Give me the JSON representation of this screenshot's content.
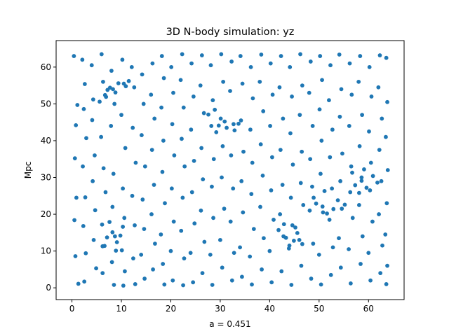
{
  "chart_data": {
    "type": "scatter",
    "title": "3D N-body simulation: yz",
    "xlabel": "a = 0.451",
    "ylabel": "Mpc",
    "xlim": [
      -3.2,
      67.2
    ],
    "ylim": [
      -3.2,
      67.2
    ],
    "x_ticks": [
      0,
      10,
      20,
      30,
      40,
      50,
      60
    ],
    "y_ticks": [
      0,
      10,
      20,
      30,
      40,
      50,
      60
    ],
    "x_tick_labels": [
      "0",
      "10",
      "20",
      "30",
      "40",
      "50",
      "60"
    ],
    "y_tick_labels": [
      "0",
      "10",
      "20",
      "30",
      "40",
      "50",
      "60"
    ],
    "grid": false,
    "marker_color": "#1f77b4",
    "series": [
      {
        "values": [
          [
            0.4,
            63.0
          ],
          [
            1.1,
            49.7
          ],
          [
            0.8,
            44.2
          ],
          [
            0.6,
            35.2
          ],
          [
            0.9,
            24.5
          ],
          [
            0.5,
            18.4
          ],
          [
            0.7,
            8.6
          ],
          [
            1.3,
            1.1
          ],
          [
            2.1,
            62.0
          ],
          [
            2.6,
            55.4
          ],
          [
            2.4,
            48.6
          ],
          [
            2.9,
            40.7
          ],
          [
            2.2,
            33.0
          ],
          [
            2.7,
            24.6
          ],
          [
            2.3,
            16.8
          ],
          [
            2.8,
            9.4
          ],
          [
            2.5,
            1.7
          ],
          [
            4.0,
            60.5
          ],
          [
            4.3,
            51.2
          ],
          [
            4.1,
            45.6
          ],
          [
            4.6,
            36.0
          ],
          [
            4.2,
            29.0
          ],
          [
            4.7,
            21.1
          ],
          [
            4.4,
            13.0
          ],
          [
            4.9,
            5.3
          ],
          [
            6.0,
            63.5
          ],
          [
            6.3,
            56.0
          ],
          [
            6.7,
            52.4
          ],
          [
            5.9,
            41.0
          ],
          [
            6.4,
            32.5
          ],
          [
            6.8,
            26.0
          ],
          [
            6.1,
            17.2
          ],
          [
            6.6,
            11.4
          ],
          [
            6.2,
            4.0
          ],
          [
            8.0,
            59.0
          ],
          [
            8.3,
            54.0
          ],
          [
            8.6,
            50.0
          ],
          [
            7.9,
            44.0
          ],
          [
            8.4,
            31.0
          ],
          [
            8.2,
            22.0
          ],
          [
            8.7,
            14.0
          ],
          [
            8.1,
            7.0
          ],
          [
            8.5,
            0.8
          ],
          [
            10.2,
            62.0
          ],
          [
            10.5,
            55.5
          ],
          [
            10.0,
            47.0
          ],
          [
            10.8,
            38.0
          ],
          [
            10.3,
            27.0
          ],
          [
            10.6,
            19.0
          ],
          [
            10.1,
            10.2
          ],
          [
            10.7,
            4.5
          ],
          [
            10.4,
            0.6
          ],
          [
            12.1,
            60.0
          ],
          [
            12.6,
            54.5
          ],
          [
            12.3,
            43.5
          ],
          [
            12.9,
            34.0
          ],
          [
            12.2,
            25.0
          ],
          [
            12.7,
            17.0
          ],
          [
            12.4,
            8.0
          ],
          [
            12.8,
            1.0
          ],
          [
            14.2,
            58.0
          ],
          [
            14.5,
            50.0
          ],
          [
            14.1,
            41.5
          ],
          [
            14.8,
            33.0
          ],
          [
            14.3,
            24.0
          ],
          [
            14.6,
            16.0
          ],
          [
            14.0,
            9.0
          ],
          [
            14.7,
            2.5
          ],
          [
            16.3,
            61.0
          ],
          [
            16.0,
            52.5
          ],
          [
            16.7,
            46.0
          ],
          [
            16.2,
            37.5
          ],
          [
            16.6,
            28.0
          ],
          [
            16.1,
            20.0
          ],
          [
            16.8,
            12.0
          ],
          [
            16.4,
            5.0
          ],
          [
            18.2,
            63.0
          ],
          [
            18.6,
            57.0
          ],
          [
            18.1,
            49.0
          ],
          [
            18.5,
            40.0
          ],
          [
            18.3,
            31.5
          ],
          [
            18.8,
            23.0
          ],
          [
            18.0,
            14.5
          ],
          [
            18.4,
            6.5
          ],
          [
            18.7,
            0.9
          ],
          [
            20.1,
            60.0
          ],
          [
            20.5,
            53.0
          ],
          [
            20.3,
            44.5
          ],
          [
            20.7,
            36.0
          ],
          [
            20.2,
            27.0
          ],
          [
            20.6,
            18.0
          ],
          [
            20.0,
            10.0
          ],
          [
            20.4,
            2.0
          ],
          [
            22.3,
            63.5
          ],
          [
            22.0,
            56.5
          ],
          [
            22.6,
            49.0
          ],
          [
            22.2,
            40.5
          ],
          [
            22.8,
            33.0
          ],
          [
            22.4,
            24.5
          ],
          [
            22.1,
            15.5
          ],
          [
            22.7,
            8.0
          ],
          [
            22.5,
            0.7
          ],
          [
            24.2,
            61.0
          ],
          [
            24.6,
            52.0
          ],
          [
            24.1,
            43.0
          ],
          [
            24.7,
            34.5
          ],
          [
            24.3,
            26.0
          ],
          [
            24.8,
            17.5
          ],
          [
            24.0,
            9.5
          ],
          [
            24.5,
            1.5
          ],
          [
            26.3,
            63.2
          ],
          [
            26.0,
            55.0
          ],
          [
            26.7,
            47.5
          ],
          [
            26.2,
            38.0
          ],
          [
            26.5,
            29.5
          ],
          [
            26.1,
            21.0
          ],
          [
            26.8,
            12.5
          ],
          [
            26.4,
            4.0
          ],
          [
            28.1,
            60.5
          ],
          [
            28.5,
            51.0
          ],
          [
            28.2,
            44.0
          ],
          [
            28.7,
            35.0
          ],
          [
            28.3,
            27.5
          ],
          [
            28.6,
            19.0
          ],
          [
            28.0,
            9.0
          ],
          [
            28.4,
            0.8
          ],
          [
            30.2,
            63.5
          ],
          [
            30.6,
            56.0
          ],
          [
            30.1,
            46.0
          ],
          [
            30.5,
            38.5
          ],
          [
            30.3,
            30.0
          ],
          [
            30.8,
            21.5
          ],
          [
            30.0,
            13.0
          ],
          [
            30.4,
            5.5
          ],
          [
            32.3,
            61.5
          ],
          [
            32.0,
            53.5
          ],
          [
            32.7,
            44.5
          ],
          [
            32.2,
            36.0
          ],
          [
            32.6,
            27.0
          ],
          [
            32.1,
            18.0
          ],
          [
            32.8,
            9.5
          ],
          [
            32.4,
            2.0
          ],
          [
            34.1,
            63.0
          ],
          [
            34.5,
            55.5
          ],
          [
            34.2,
            45.5
          ],
          [
            34.7,
            37.0
          ],
          [
            34.3,
            29.0
          ],
          [
            34.6,
            20.5
          ],
          [
            34.0,
            11.0
          ],
          [
            34.4,
            3.0
          ],
          [
            36.2,
            60.0
          ],
          [
            36.6,
            51.5
          ],
          [
            36.1,
            43.0
          ],
          [
            36.5,
            34.0
          ],
          [
            36.3,
            25.5
          ],
          [
            36.8,
            16.0
          ],
          [
            36.0,
            8.5
          ],
          [
            36.4,
            0.9
          ],
          [
            38.3,
            63.4
          ],
          [
            38.0,
            56.0
          ],
          [
            38.7,
            48.0
          ],
          [
            38.2,
            39.0
          ],
          [
            38.6,
            30.5
          ],
          [
            38.1,
            22.0
          ],
          [
            38.8,
            13.5
          ],
          [
            38.4,
            5.0
          ],
          [
            40.2,
            61.0
          ],
          [
            40.6,
            52.5
          ],
          [
            40.1,
            44.0
          ],
          [
            40.5,
            35.5
          ],
          [
            40.3,
            26.5
          ],
          [
            40.8,
            18.5
          ],
          [
            40.0,
            10.0
          ],
          [
            40.4,
            1.5
          ],
          [
            42.3,
            63.0
          ],
          [
            42.0,
            54.5
          ],
          [
            42.7,
            46.0
          ],
          [
            42.2,
            37.5
          ],
          [
            42.6,
            28.0
          ],
          [
            42.1,
            20.0
          ],
          [
            42.8,
            14.0
          ],
          [
            42.4,
            4.5
          ],
          [
            44.1,
            60.0
          ],
          [
            44.5,
            52.0
          ],
          [
            44.2,
            42.0
          ],
          [
            44.7,
            33.5
          ],
          [
            44.3,
            24.5
          ],
          [
            44.6,
            17.0
          ],
          [
            44.0,
            11.5
          ],
          [
            44.4,
            0.8
          ],
          [
            46.2,
            63.5
          ],
          [
            46.6,
            55.0
          ],
          [
            46.1,
            47.0
          ],
          [
            46.5,
            37.0
          ],
          [
            46.3,
            28.5
          ],
          [
            46.8,
            22.5
          ],
          [
            46.0,
            13.0
          ],
          [
            46.4,
            6.0
          ],
          [
            48.3,
            61.5
          ],
          [
            48.0,
            53.0
          ],
          [
            48.7,
            44.0
          ],
          [
            48.2,
            35.0
          ],
          [
            48.6,
            27.5
          ],
          [
            48.1,
            21.0
          ],
          [
            48.8,
            12.0
          ],
          [
            48.4,
            2.5
          ],
          [
            50.2,
            63.0
          ],
          [
            50.6,
            56.5
          ],
          [
            50.1,
            48.5
          ],
          [
            50.5,
            40.0
          ],
          [
            50.3,
            31.0
          ],
          [
            50.8,
            20.5
          ],
          [
            50.0,
            9.0
          ],
          [
            50.4,
            0.9
          ],
          [
            52.3,
            60.5
          ],
          [
            52.0,
            51.0
          ],
          [
            52.7,
            43.0
          ],
          [
            52.2,
            35.5
          ],
          [
            52.6,
            27.0
          ],
          [
            52.1,
            18.5
          ],
          [
            52.8,
            11.0
          ],
          [
            52.4,
            3.5
          ],
          [
            54.1,
            63.4
          ],
          [
            54.5,
            54.0
          ],
          [
            54.2,
            46.5
          ],
          [
            54.7,
            36.5
          ],
          [
            54.3,
            29.0
          ],
          [
            54.6,
            21.5
          ],
          [
            54.0,
            13.5
          ],
          [
            54.4,
            5.5
          ],
          [
            56.2,
            61.0
          ],
          [
            56.6,
            52.5
          ],
          [
            56.1,
            44.0
          ],
          [
            56.5,
            33.0
          ],
          [
            56.3,
            26.0
          ],
          [
            56.8,
            19.0
          ],
          [
            56.0,
            10.5
          ],
          [
            56.4,
            1.2
          ],
          [
            58.3,
            63.0
          ],
          [
            58.0,
            56.0
          ],
          [
            58.7,
            47.0
          ],
          [
            58.2,
            38.5
          ],
          [
            58.6,
            30.0
          ],
          [
            58.1,
            22.5
          ],
          [
            58.8,
            14.0
          ],
          [
            58.4,
            6.5
          ],
          [
            60.2,
            60.0
          ],
          [
            60.6,
            52.0
          ],
          [
            60.1,
            42.5
          ],
          [
            60.5,
            34.0
          ],
          [
            60.3,
            26.5
          ],
          [
            60.8,
            18.0
          ],
          [
            60.0,
            9.5
          ],
          [
            60.4,
            2.0
          ],
          [
            62.3,
            63.2
          ],
          [
            62.0,
            54.5
          ],
          [
            62.7,
            46.0
          ],
          [
            62.2,
            37.5
          ],
          [
            62.6,
            29.0
          ],
          [
            62.1,
            20.0
          ],
          [
            62.8,
            11.5
          ],
          [
            62.4,
            4.0
          ],
          [
            63.6,
            62.5
          ],
          [
            63.8,
            50.5
          ],
          [
            63.5,
            41.0
          ],
          [
            63.9,
            32.0
          ],
          [
            63.7,
            23.0
          ],
          [
            63.4,
            14.5
          ],
          [
            63.8,
            6.0
          ],
          [
            63.6,
            1.0
          ],
          [
            7.2,
            53.8
          ],
          [
            7.7,
            54.4
          ],
          [
            8.8,
            53.1
          ],
          [
            9.4,
            55.6
          ],
          [
            6.9,
            51.9
          ],
          [
            5.6,
            50.6
          ],
          [
            10.9,
            54.8
          ],
          [
            11.5,
            56.2
          ],
          [
            27.6,
            47.1
          ],
          [
            28.9,
            48.4
          ],
          [
            29.7,
            44.1
          ],
          [
            31.3,
            43.5
          ],
          [
            32.9,
            42.8
          ],
          [
            33.7,
            44.6
          ],
          [
            30.9,
            45.2
          ],
          [
            29.2,
            42.3
          ],
          [
            43.3,
            13.6
          ],
          [
            44.9,
            12.8
          ],
          [
            45.6,
            14.9
          ],
          [
            41.8,
            15.7
          ],
          [
            43.9,
            10.7
          ],
          [
            46.6,
            11.9
          ],
          [
            42.9,
            17.3
          ],
          [
            45.2,
            16.4
          ],
          [
            50.7,
            22.1
          ],
          [
            52.9,
            21.4
          ],
          [
            51.6,
            20.2
          ],
          [
            53.8,
            23.8
          ],
          [
            49.4,
            22.9
          ],
          [
            55.2,
            22.6
          ],
          [
            48.9,
            24.5
          ],
          [
            51.1,
            26.3
          ],
          [
            57.3,
            27.9
          ],
          [
            58.6,
            29.1
          ],
          [
            59.6,
            27.2
          ],
          [
            60.9,
            30.4
          ],
          [
            56.7,
            31.3
          ],
          [
            61.8,
            28.6
          ],
          [
            59.1,
            32.2
          ],
          [
            58.1,
            25.8
          ],
          [
            8.2,
            15.1
          ],
          [
            9.1,
            12.4
          ],
          [
            7.1,
            13.7
          ],
          [
            10.3,
            16.6
          ],
          [
            6.2,
            11.3
          ],
          [
            9.8,
            14.2
          ],
          [
            8.9,
            10.1
          ],
          [
            7.6,
            17.9
          ]
        ]
      }
    ]
  }
}
